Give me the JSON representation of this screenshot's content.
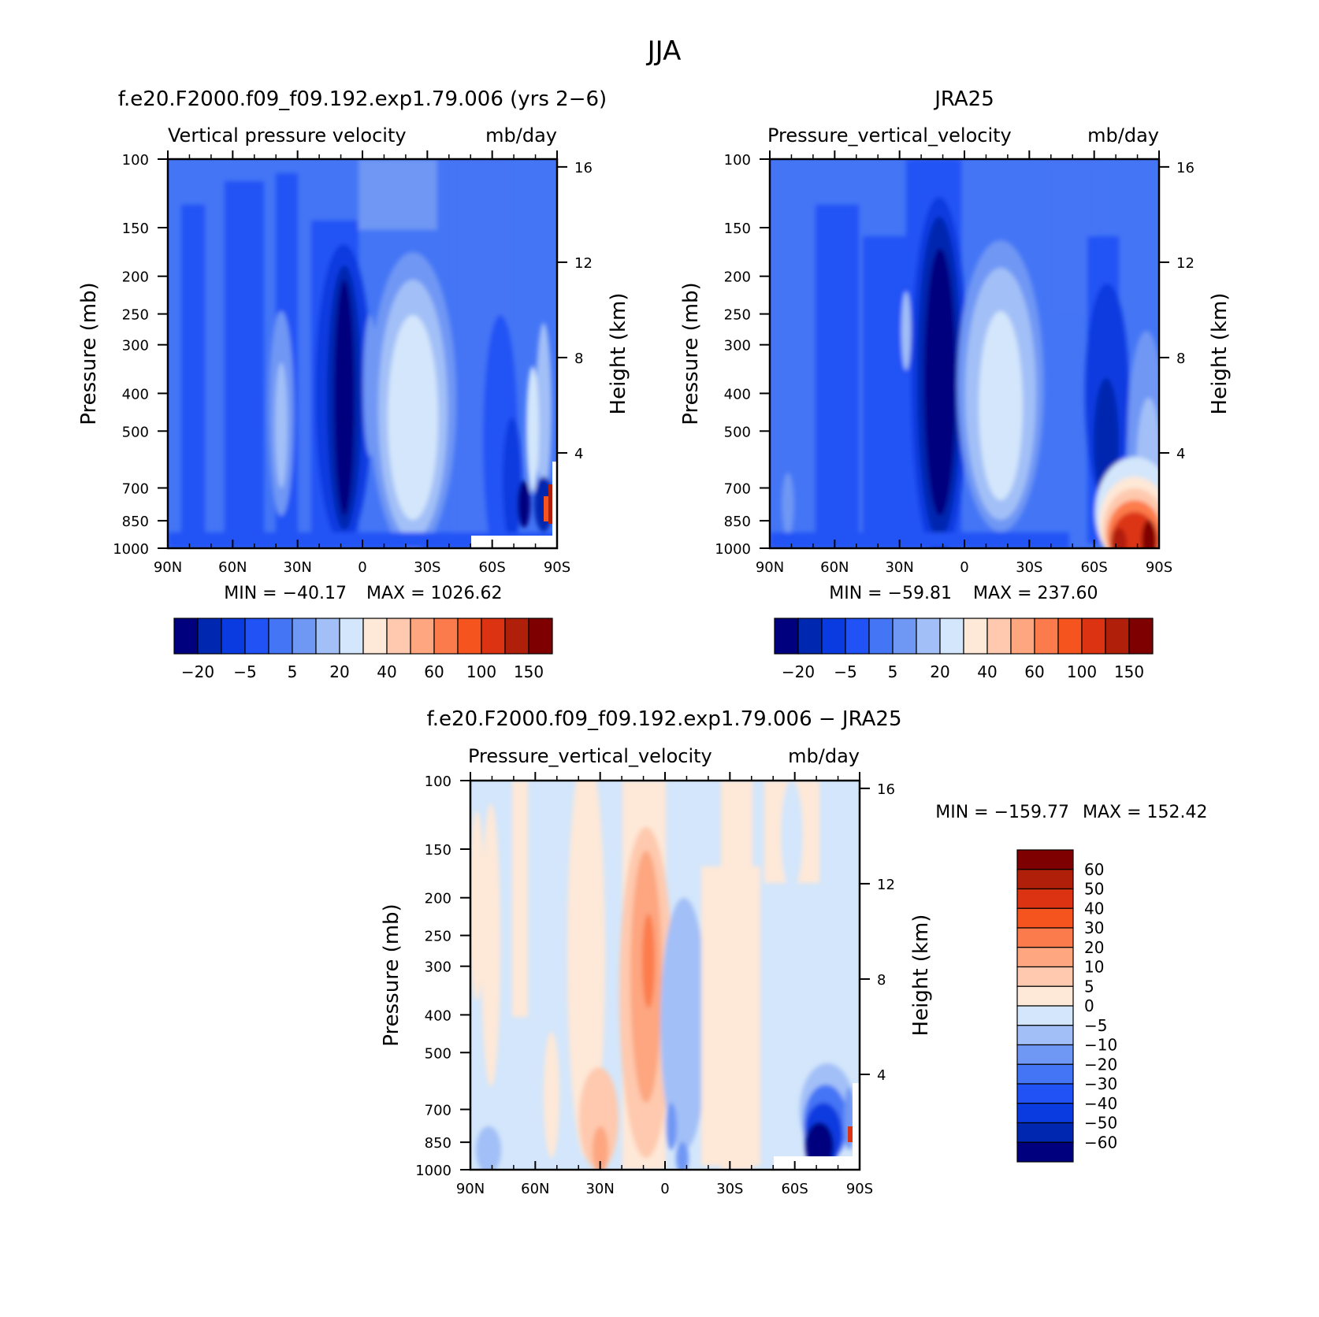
{
  "figure_title": "JJA",
  "chart_data": [
    {
      "type": "heatmap",
      "panel_title": "f.e20.F2000.f09_f09.192.exp1.79.006 (yrs 2−6)",
      "subtitle_left": "Vertical pressure velocity",
      "subtitle_right": "mb/day",
      "ylabel": "Pressure (mb)",
      "ylabel_right": "Height (km)",
      "x_ticks": [
        "90N",
        "60N",
        "30N",
        "0",
        "30S",
        "60S",
        "90S"
      ],
      "y_ticks": [
        "100",
        "150",
        "200",
        "250",
        "300",
        "400",
        "500",
        "700",
        "850",
        "1000"
      ],
      "y_ticks_right": [
        "16",
        "12",
        "8",
        "4"
      ],
      "min_label": "MIN = −40.17",
      "max_label": "MAX = 1026.62",
      "min": -40.17,
      "max": 1026.62,
      "colorbar_orientation": "horizontal",
      "colorbar_labels": [
        "−20",
        "−5",
        "5",
        "20",
        "40",
        "60",
        "100",
        "150"
      ],
      "colors": [
        "#00007f",
        "#0027b0",
        "#0a3be0",
        "#2052f5",
        "#4475f5",
        "#6f97f4",
        "#a2bff7",
        "#d3e6fb",
        "#fee8d7",
        "#fec9ae",
        "#fda680",
        "#fc7b4c",
        "#f6541f",
        "#dc3412",
        "#b01f09",
        "#7f0000"
      ]
    },
    {
      "type": "heatmap",
      "panel_title": "JRA25",
      "subtitle_left": "Pressure_vertical_velocity",
      "subtitle_right": "mb/day",
      "ylabel": "Pressure (mb)",
      "ylabel_right": "Height (km)",
      "x_ticks": [
        "90N",
        "60N",
        "30N",
        "0",
        "30S",
        "60S",
        "90S"
      ],
      "y_ticks": [
        "100",
        "150",
        "200",
        "250",
        "300",
        "400",
        "500",
        "700",
        "850",
        "1000"
      ],
      "y_ticks_right": [
        "16",
        "12",
        "8",
        "4"
      ],
      "min_label": "MIN = −59.81",
      "max_label": "MAX = 237.60",
      "min": -59.81,
      "max": 237.6,
      "colorbar_orientation": "horizontal",
      "colorbar_labels": [
        "−20",
        "−5",
        "5",
        "20",
        "40",
        "60",
        "100",
        "150"
      ],
      "colors": [
        "#00007f",
        "#0027b0",
        "#0a3be0",
        "#2052f5",
        "#4475f5",
        "#6f97f4",
        "#a2bff7",
        "#d3e6fb",
        "#fee8d7",
        "#fec9ae",
        "#fda680",
        "#fc7b4c",
        "#f6541f",
        "#dc3412",
        "#b01f09",
        "#7f0000"
      ]
    },
    {
      "type": "heatmap",
      "panel_title": "f.e20.F2000.f09_f09.192.exp1.79.006 − JRA25",
      "subtitle_left": "Pressure_vertical_velocity",
      "subtitle_right": "mb/day",
      "ylabel": "Pressure (mb)",
      "ylabel_right": "Height (km)",
      "x_ticks": [
        "90N",
        "60N",
        "30N",
        "0",
        "30S",
        "60S",
        "90S"
      ],
      "y_ticks": [
        "100",
        "150",
        "200",
        "250",
        "300",
        "400",
        "500",
        "700",
        "850",
        "1000"
      ],
      "y_ticks_right": [
        "16",
        "12",
        "8",
        "4"
      ],
      "min_label": "MIN = −159.77",
      "max_label": "MAX = 152.42",
      "min": -159.77,
      "max": 152.42,
      "colorbar_orientation": "vertical",
      "colorbar_labels": [
        "60",
        "50",
        "40",
        "30",
        "20",
        "10",
        "5",
        "0",
        "−5",
        "−10",
        "−20",
        "−30",
        "−40",
        "−50",
        "−60"
      ],
      "colors": [
        "#7f0000",
        "#b01f09",
        "#dc3412",
        "#f6541f",
        "#fc7b4c",
        "#fda680",
        "#fec9ae",
        "#fee8d7",
        "#d3e6fb",
        "#a2bff7",
        "#6f97f4",
        "#4475f5",
        "#2052f5",
        "#0a3be0",
        "#0027b0",
        "#00007f"
      ]
    }
  ]
}
